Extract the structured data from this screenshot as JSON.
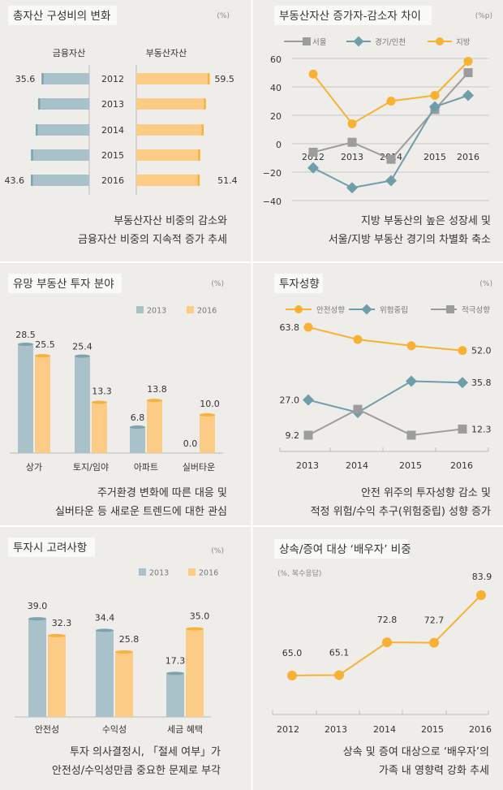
{
  "colors": {
    "background": "#efedea",
    "blue": "#a9c1c9",
    "blue_cap": "#7ea3ad",
    "orange": "#fccb85",
    "orange_cap": "#f7b23b",
    "gray": "#9c9c9c",
    "teal": "#6e9eaa",
    "line_orange": "#f8b133"
  },
  "chart_data": [
    {
      "type": "bar",
      "orientation": "horizontal-diverging",
      "title": "총자산 구성비의 변화",
      "unit": "(%)",
      "categories": [
        "2012",
        "2013",
        "2014",
        "2015",
        "2016"
      ],
      "series": [
        {
          "name": "금융자산",
          "values": [
            35.6,
            38.2,
            40.0,
            43.5,
            43.6
          ],
          "labels": [
            "35.6",
            "",
            "",
            "",
            "43.6"
          ]
        },
        {
          "name": "부동산자산",
          "values": [
            59.5,
            56.4,
            54.6,
            51.8,
            51.4
          ],
          "labels": [
            "59.5",
            "",
            "",
            "",
            "51.4"
          ]
        }
      ],
      "caption": [
        "부동산자산 비중의 감소와",
        "금융자산 비중의 지속적 증가 추세"
      ]
    },
    {
      "type": "line",
      "title": "부동산자산 증가자-감소자 차이",
      "unit": "(%p)",
      "categories": [
        "2012",
        "2013",
        "2014",
        "2015",
        "2016"
      ],
      "ylim": [
        -40,
        60
      ],
      "yticks": [
        "60",
        "40",
        "20",
        "0",
        "−20",
        "−40"
      ],
      "grid": true,
      "legend": "top",
      "series": [
        {
          "name": "서울",
          "marker": "square",
          "values": [
            -6,
            1,
            -11,
            24,
            50
          ]
        },
        {
          "name": "경기/인천",
          "marker": "diamond",
          "values": [
            -17,
            -31,
            -26,
            26,
            34
          ]
        },
        {
          "name": "지방",
          "marker": "circle",
          "values": [
            49,
            14,
            30,
            34,
            58
          ]
        }
      ],
      "caption": [
        "지방 부동산의 높은 성장세 및",
        "서울/지방 부동산 경기의 차별화 축소"
      ]
    },
    {
      "type": "bar",
      "title": "유망 부동산 투자 분야",
      "unit": "(%)",
      "legend": "top-right",
      "categories": [
        "상가",
        "토지/임야",
        "아파트",
        "실버타운"
      ],
      "series": [
        {
          "name": "2013",
          "values": [
            28.5,
            25.4,
            6.8,
            0.0
          ],
          "labels": [
            "28.5",
            "25.4",
            "6.8",
            "0.0"
          ]
        },
        {
          "name": "2016",
          "values": [
            25.5,
            13.3,
            13.8,
            10.0
          ],
          "labels": [
            "25.5",
            "13.3",
            "13.8",
            "10.0"
          ]
        }
      ],
      "caption": [
        "주거환경 변화에 따른 대응 및",
        "실버타운 등 새로운 트렌드에 대한 관심"
      ]
    },
    {
      "type": "line",
      "title": "투자성향",
      "unit": "(%)",
      "legend": "top",
      "categories": [
        "2013",
        "2014",
        "2015",
        "2016"
      ],
      "series": [
        {
          "name": "안전성향",
          "marker": "circle",
          "values": [
            63.8,
            57.6,
            54.4,
            52.0
          ],
          "labels": [
            "63.8",
            "",
            "",
            "52.0"
          ]
        },
        {
          "name": "위험중립",
          "marker": "diamond",
          "values": [
            27.0,
            20.7,
            36.5,
            35.8
          ],
          "labels": [
            "27.0",
            "",
            "",
            "35.8"
          ]
        },
        {
          "name": "적극성향",
          "marker": "square",
          "values": [
            9.2,
            22.3,
            9.2,
            12.3
          ],
          "labels": [
            "9.2",
            "",
            "",
            "12.3"
          ]
        }
      ],
      "caption": [
        "안전 위주의 투자성향 감소 및",
        "적정 위험/수익 추구(위험중립) 성향 증가"
      ]
    },
    {
      "type": "bar",
      "title": "투자시 고려사항",
      "unit": "(%)",
      "legend": "top-right",
      "categories": [
        "안전성",
        "수익성",
        "세금 혜택"
      ],
      "series": [
        {
          "name": "2013",
          "values": [
            39.0,
            34.4,
            17.3
          ],
          "labels": [
            "39.0",
            "34.4",
            "17.3"
          ]
        },
        {
          "name": "2016",
          "values": [
            32.3,
            25.8,
            35.0
          ],
          "labels": [
            "32.3",
            "25.8",
            "35.0"
          ]
        }
      ],
      "caption": [
        "투자 의사결정시, 「절세 여부」가",
        "안전성/수익성만큼 중요한 문제로 부각"
      ]
    },
    {
      "type": "line",
      "title": "상속/증여 대상 ‘배우자’ 비중",
      "unit": "(%, 복수응답)",
      "categories": [
        "2012",
        "2013",
        "2014",
        "2015",
        "2016"
      ],
      "series": [
        {
          "values": [
            65.0,
            65.1,
            72.8,
            72.7,
            83.9
          ],
          "labels": [
            "65.0",
            "65.1",
            "72.8",
            "72.7",
            "83.9"
          ]
        }
      ],
      "caption": [
        "상속 및 증여 대상으로 ‘배우자’의",
        "가족 내 영향력 강화 추세"
      ]
    }
  ]
}
